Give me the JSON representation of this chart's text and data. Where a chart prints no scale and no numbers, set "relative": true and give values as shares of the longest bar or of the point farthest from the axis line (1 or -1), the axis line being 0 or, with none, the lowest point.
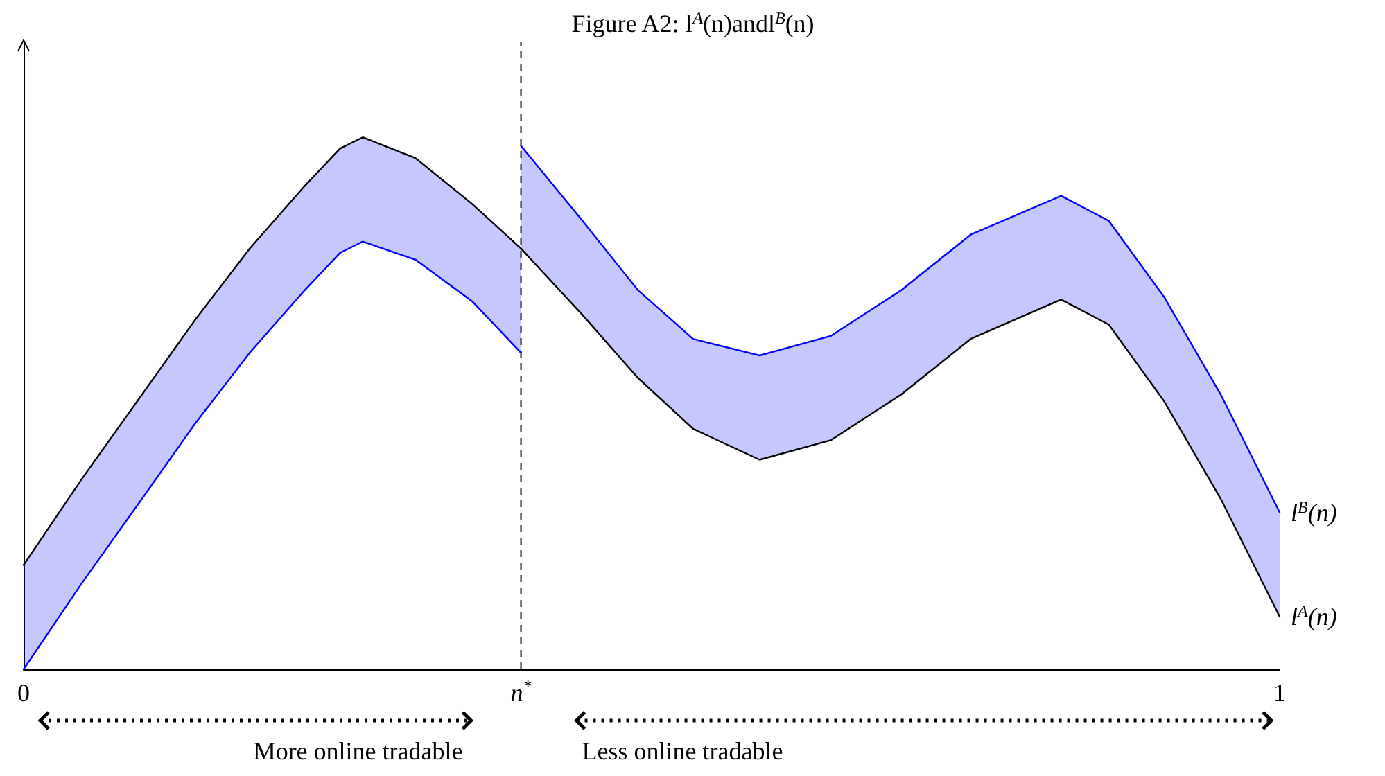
{
  "chart_data": {
    "type": "line",
    "title": "Figure A2: l$^{A}$(n)andl$^{B}$(n)",
    "relative": true,
    "x": [
      0,
      0.047,
      0.092,
      0.136,
      0.18,
      0.224,
      0.252,
      0.27,
      0.312,
      0.357,
      0.396,
      0.396,
      0.396,
      0.445,
      0.489,
      0.533,
      0.586,
      0.643,
      0.699,
      0.754,
      0.826,
      0.864,
      0.908,
      0.953,
      1
    ],
    "series": [
      {
        "name": "l$^{A}$(n)",
        "color": "#000000",
        "values": [
          0.196,
          0.36,
          0.509,
          0.655,
          0.791,
          0.909,
          0.979,
          1,
          0.961,
          0.875,
          0.791,
          0.791,
          0.791,
          0.666,
          0.548,
          0.452,
          0.394,
          0.431,
          0.517,
          0.621,
          0.695,
          0.648,
          0.504,
          0.321,
          0.099
        ]
      },
      {
        "name": "l$^{B}$(n)",
        "color": "#0000ff",
        "values": [
          0,
          0.164,
          0.313,
          0.46,
          0.595,
          0.713,
          0.783,
          0.804,
          0.77,
          0.692,
          0.595,
          null,
          0.984,
          0.843,
          0.713,
          0.621,
          0.59,
          0.627,
          0.713,
          0.817,
          0.89,
          0.843,
          0.7,
          0.517,
          0.295
        ],
        "lower": [
          0.196,
          0.36,
          0.509,
          0.655,
          0.791,
          0.909,
          0.979,
          1,
          0.961,
          0.875,
          0.791,
          null,
          0.791,
          0.666,
          0.548,
          0.452,
          0.394,
          0.431,
          0.517,
          0.621,
          0.695,
          0.648,
          0.504,
          0.321,
          0.099
        ],
        "upper": [
          0,
          0.164,
          0.313,
          0.46,
          0.595,
          0.713,
          0.783,
          0.804,
          0.77,
          0.692,
          0.595,
          null,
          0.984,
          0.843,
          0.713,
          0.621,
          0.59,
          0.627,
          0.713,
          0.817,
          0.89,
          0.843,
          0.7,
          0.517,
          0.295
        ]
      }
    ],
    "xlim": [
      0,
      1
    ],
    "xticks": [
      0,
      {
        "value": 0.396,
        "label": "n$^{*}$"
      },
      1
    ],
    "ref_lines": [
      {
        "axis": "x",
        "value": 0.396,
        "color": "#000000",
        "line_style": "dashed"
      }
    ],
    "annotations": [
      "More online tradable",
      "Less online tradable"
    ],
    "marker": "none",
    "line_style": "solid",
    "grid": false,
    "legend": false
  }
}
